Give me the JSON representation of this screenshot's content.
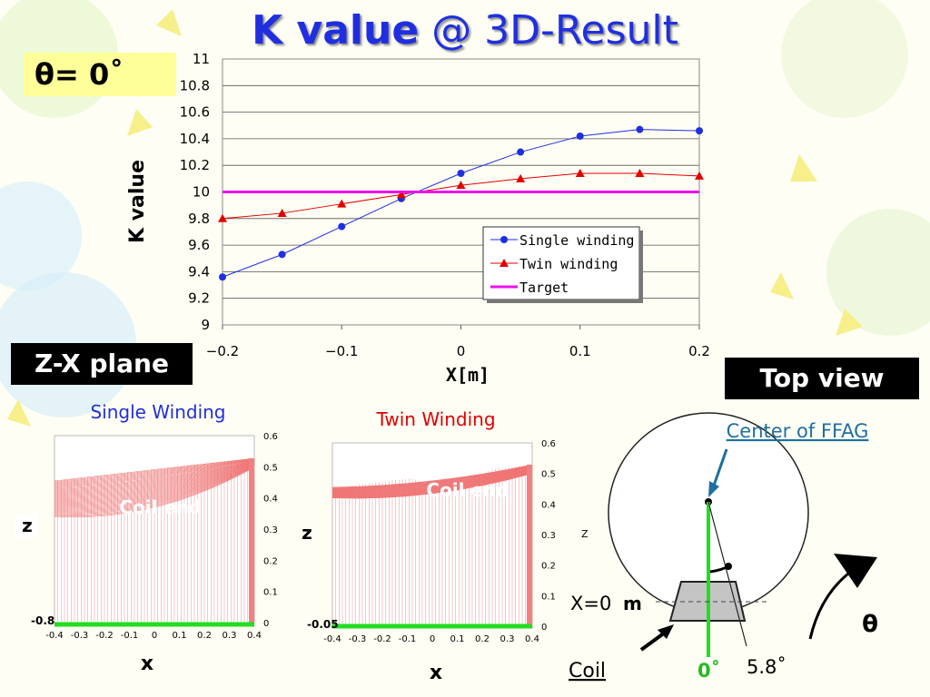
{
  "title_bold": "K value",
  "title_rest": " @ 3D-Result",
  "theta_label": "θ= 0˚",
  "zx_plane_label": "Z-X plane",
  "top_view_label": "Top view",
  "chart_data": [
    {
      "type": "line",
      "xlabel": "X[m]",
      "ylabel": "K value",
      "xlim": [
        -0.2,
        0.2
      ],
      "ylim": [
        9,
        11
      ],
      "xticks": [
        "−0.2",
        "−0.1",
        "0",
        "0.1",
        "0.2"
      ],
      "yticks": [
        "9",
        "9.2",
        "9.4",
        "9.6",
        "9.8",
        "10",
        "10.2",
        "10.4",
        "10.6",
        "10.8",
        "11"
      ],
      "grid": true,
      "legend_position": "bottom-right",
      "series": [
        {
          "name": "Single winding",
          "color": "#1f2fe0",
          "marker": "circle",
          "x": [
            -0.2,
            -0.15,
            -0.1,
            -0.05,
            0,
            0.05,
            0.1,
            0.15,
            0.2
          ],
          "y": [
            9.36,
            9.53,
            9.74,
            9.95,
            10.14,
            10.3,
            10.42,
            10.47,
            10.46
          ]
        },
        {
          "name": "Twin winding",
          "color": "#e00000",
          "marker": "triangle",
          "x": [
            -0.2,
            -0.15,
            -0.1,
            -0.05,
            0,
            0.05,
            0.1,
            0.15,
            0.2
          ],
          "y": [
            9.8,
            9.84,
            9.91,
            9.98,
            10.05,
            10.1,
            10.14,
            10.14,
            10.12
          ]
        },
        {
          "name": "Target",
          "color": "#ee11ee",
          "marker": "none",
          "x": [
            -0.2,
            0.2
          ],
          "y": [
            10,
            10
          ]
        }
      ]
    },
    {
      "type": "area",
      "title": "Single Winding",
      "xlabel": "x",
      "ylabel": "z",
      "xticks": [
        "-0.4",
        "-0.3",
        "-0.2",
        "-0.1",
        "0",
        "0.1",
        "0.2",
        "0.3",
        "0.4"
      ],
      "yticks": [
        "0",
        "0.1",
        "0.2",
        "0.3",
        "0.4",
        "0.5",
        "0.6"
      ],
      "annotation": "Coil end",
      "xlim": [
        -0.4,
        0.4
      ],
      "ylim": [
        0,
        0.6
      ]
    },
    {
      "type": "area",
      "title": "Twin Winding",
      "xlabel": "x",
      "ylabel": "z",
      "xticks": [
        "-0.4",
        "-0.3",
        "-0.2",
        "-0.1",
        "0",
        "0.1",
        "0.2",
        "0.3",
        "0.4"
      ],
      "yticks": [
        "0",
        "0.1",
        "0.2",
        "0.3",
        "0.4",
        "0.5",
        "0.6"
      ],
      "annotation": "Coil end",
      "xlim": [
        -0.4,
        0.4
      ],
      "ylim": [
        0,
        0.6
      ]
    }
  ],
  "top_view": {
    "center_label": "Center of FFAG",
    "z_label": "Z",
    "x0_label": "X=0",
    "m_label": "m",
    "coil_label": "Coil",
    "zero_angle": "0˚",
    "angle_label": "5.8˚",
    "theta_symbol": "θ"
  }
}
